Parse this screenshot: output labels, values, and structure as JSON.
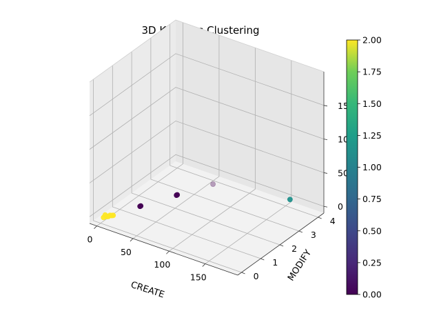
{
  "chart_data": {
    "type": "scatter",
    "title": "3D K-means Clustering",
    "xlabel": "CREATE",
    "ylabel": "MODIFY",
    "zlabel": "",
    "x_ticks": [
      "0",
      "50",
      "100",
      "150"
    ],
    "y_ticks": [
      "0",
      "1",
      "2",
      "3",
      "4"
    ],
    "z_ticks": [
      "0",
      "50",
      "100",
      "150"
    ],
    "xlim": [
      -10,
      195
    ],
    "ylim": [
      -0.2,
      4.3
    ],
    "zlim": [
      -10,
      200
    ],
    "grid": true,
    "colormap": "viridis",
    "colorbar": {
      "min": 0,
      "max": 2,
      "ticks": [
        "0.00",
        "0.25",
        "0.50",
        "0.75",
        "1.00",
        "1.25",
        "1.50",
        "1.75",
        "2.00"
      ]
    },
    "points": [
      {
        "x": 4,
        "y": 0.0,
        "z": 0,
        "cluster": 2,
        "color": "#fde725"
      },
      {
        "x": 6,
        "y": 0.1,
        "z": 0,
        "cluster": 2,
        "color": "#fde725"
      },
      {
        "x": 8,
        "y": 0.1,
        "z": 1,
        "cluster": 2,
        "color": "#fde725"
      },
      {
        "x": 10,
        "y": 0.2,
        "z": 1,
        "cluster": 2,
        "color": "#fde725"
      },
      {
        "x": 12,
        "y": 0.2,
        "z": 2,
        "cluster": 2,
        "color": "#fde725"
      },
      {
        "x": 5,
        "y": 0.05,
        "z": 3,
        "cluster": 2,
        "color": "#fde725"
      },
      {
        "x": 9,
        "y": 0.15,
        "z": 2,
        "cluster": 2,
        "color": "#fde725"
      },
      {
        "x": 28,
        "y": 1.0,
        "z": 5,
        "cluster": 0,
        "color": "#440154"
      },
      {
        "x": 29,
        "y": 1.0,
        "z": 6,
        "cluster": 0,
        "color": "#440154"
      },
      {
        "x": 52,
        "y": 2.0,
        "z": 10,
        "cluster": 0,
        "color": "#440154"
      },
      {
        "x": 53,
        "y": 2.0,
        "z": 11,
        "cluster": 0,
        "color": "#440154"
      },
      {
        "x": 76,
        "y": 3.0,
        "z": 15,
        "cluster": 0,
        "color": "#440154",
        "alpha": 0.35
      },
      {
        "x": 172,
        "y": 3.4,
        "z": 20,
        "cluster": 1,
        "color": "#21918c"
      }
    ]
  }
}
